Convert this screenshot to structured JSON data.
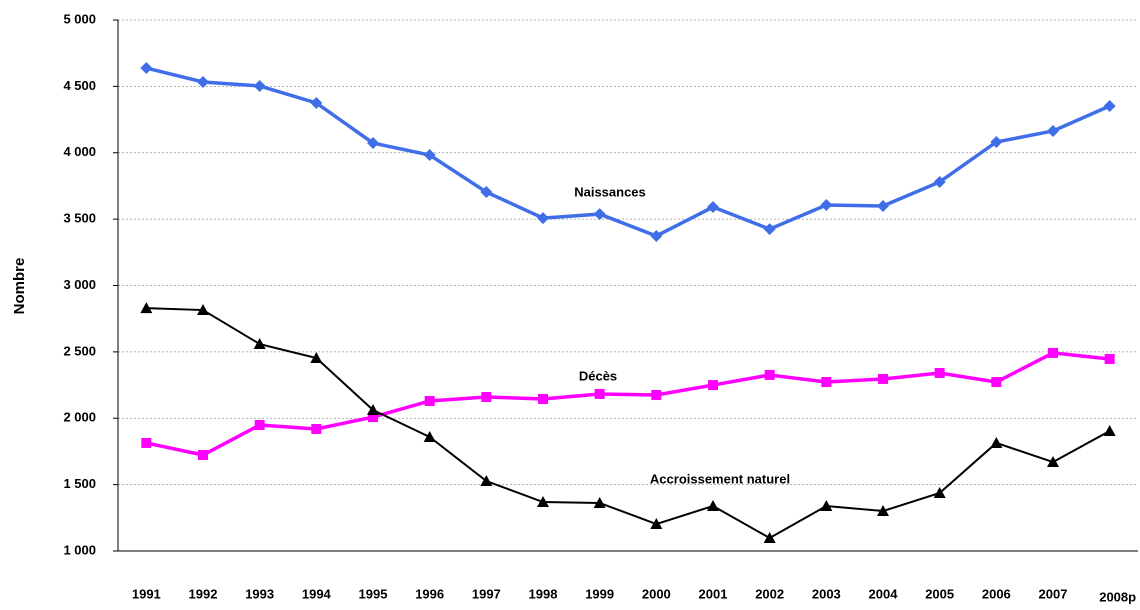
{
  "chart_data": {
    "type": "line",
    "y_label": "Nombre",
    "categories": [
      "1991",
      "1992",
      "1993",
      "1994",
      "1995",
      "1996",
      "1997",
      "1998",
      "1999",
      "2000",
      "2001",
      "2002",
      "2003",
      "2004",
      "2005",
      "2006",
      "2007",
      "2008p"
    ],
    "series": [
      {
        "name": "Naissances",
        "color": "#3f6ee8",
        "marker": "diamond",
        "values": [
          4638,
          4533,
          4503,
          4375,
          4073,
          3983,
          3704,
          3508,
          3538,
          3373,
          3591,
          3425,
          3606,
          3599,
          3780,
          4081,
          4164,
          4352
        ]
      },
      {
        "name": "Décès",
        "color": "#ff00ff",
        "marker": "square",
        "values": [
          1814,
          1723,
          1949,
          1919,
          2009,
          2130,
          2160,
          2145,
          2183,
          2175,
          2250,
          2326,
          2273,
          2296,
          2341,
          2273,
          2492,
          2446
        ]
      },
      {
        "name": "Accroissement naturel",
        "color": "#000000",
        "marker": "triangle",
        "values": [
          2830,
          2815,
          2559,
          2454,
          2062,
          1859,
          1527,
          1369,
          1362,
          1203,
          1339,
          1098,
          1339,
          1301,
          1437,
          1814,
          1670,
          1904
        ]
      }
    ],
    "ylim": [
      1000,
      5000
    ],
    "yticks": [
      {
        "value": 1000,
        "label": "1 000"
      },
      {
        "value": 1500,
        "label": "1 500"
      },
      {
        "value": 2000,
        "label": "2 000"
      },
      {
        "value": 2500,
        "label": "2 500"
      },
      {
        "value": 3000,
        "label": "3 000"
      },
      {
        "value": 3500,
        "label": "3 500"
      },
      {
        "value": 4000,
        "label": "4 000"
      },
      {
        "value": 4500,
        "label": "4 500"
      },
      {
        "value": 5000,
        "label": "5 000"
      }
    ],
    "grid": true
  }
}
